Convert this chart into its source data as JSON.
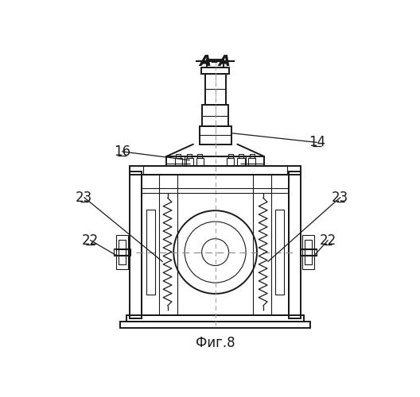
{
  "title": "А–А",
  "caption": "Фиг.8",
  "bg_color": "#ffffff",
  "line_color": "#1a1a1a",
  "figsize": [
    5.28,
    5.0
  ],
  "dpi": 100
}
